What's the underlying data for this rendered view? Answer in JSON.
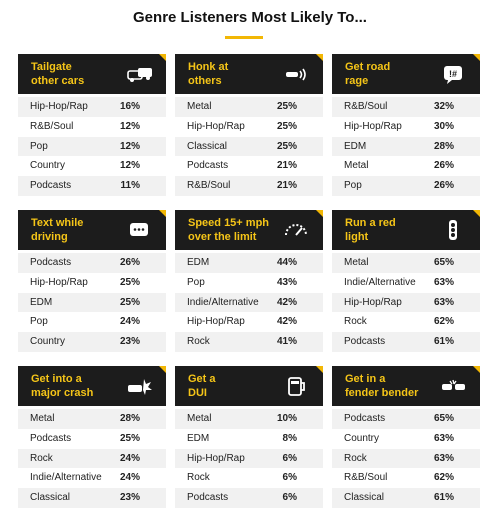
{
  "title": "Genre Listeners Most Likely To...",
  "panels": [
    {
      "title_lines": [
        "Tailgate",
        "other cars"
      ],
      "rows": [
        [
          "Hip-Hop/Rap",
          "16%"
        ],
        [
          "R&B/Soul",
          "12%"
        ],
        [
          "Pop",
          "12%"
        ],
        [
          "Country",
          "12%"
        ],
        [
          "Podcasts",
          "11%"
        ]
      ]
    },
    {
      "title_lines": [
        "Honk at",
        "others"
      ],
      "rows": [
        [
          "Metal",
          "25%"
        ],
        [
          "Hip-Hop/Rap",
          "25%"
        ],
        [
          "Classical",
          "25%"
        ],
        [
          "Podcasts",
          "21%"
        ],
        [
          "R&B/Soul",
          "21%"
        ]
      ]
    },
    {
      "title_lines": [
        "Get road",
        "rage"
      ],
      "rows": [
        [
          "R&B/Soul",
          "32%"
        ],
        [
          "Hip-Hop/Rap",
          "30%"
        ],
        [
          "EDM",
          "28%"
        ],
        [
          "Metal",
          "26%"
        ],
        [
          "Pop",
          "26%"
        ]
      ]
    },
    {
      "title_lines": [
        "Text while",
        "driving"
      ],
      "rows": [
        [
          "Podcasts",
          "26%"
        ],
        [
          "Hip-Hop/Rap",
          "25%"
        ],
        [
          "EDM",
          "25%"
        ],
        [
          "Pop",
          "24%"
        ],
        [
          "Country",
          "23%"
        ]
      ]
    },
    {
      "title_lines": [
        "Speed 15+ mph",
        "over the limit"
      ],
      "rows": [
        [
          "EDM",
          "44%"
        ],
        [
          "Pop",
          "43%"
        ],
        [
          "Indie/Alternative",
          "42%"
        ],
        [
          "Hip-Hop/Rap",
          "42%"
        ],
        [
          "Rock",
          "41%"
        ]
      ]
    },
    {
      "title_lines": [
        "Run a red",
        "light"
      ],
      "rows": [
        [
          "Metal",
          "65%"
        ],
        [
          "Indie/Alternative",
          "63%"
        ],
        [
          "Hip-Hop/Rap",
          "63%"
        ],
        [
          "Rock",
          "62%"
        ],
        [
          "Podcasts",
          "61%"
        ]
      ]
    },
    {
      "title_lines": [
        "Get into a",
        "major crash"
      ],
      "rows": [
        [
          "Metal",
          "28%"
        ],
        [
          "Podcasts",
          "25%"
        ],
        [
          "Rock",
          "24%"
        ],
        [
          "Indie/Alternative",
          "24%"
        ],
        [
          "Classical",
          "23%"
        ]
      ]
    },
    {
      "title_lines": [
        "Get a",
        "DUI"
      ],
      "rows": [
        [
          "Metal",
          "10%"
        ],
        [
          "EDM",
          "8%"
        ],
        [
          "Hip-Hop/Rap",
          "6%"
        ],
        [
          "Rock",
          "6%"
        ],
        [
          "Podcasts",
          "6%"
        ]
      ]
    },
    {
      "title_lines": [
        "Get in a",
        "fender bender"
      ],
      "rows": [
        [
          "Podcasts",
          "65%"
        ],
        [
          "Country",
          "63%"
        ],
        [
          "Rock",
          "63%"
        ],
        [
          "R&B/Soul",
          "62%"
        ],
        [
          "Classical",
          "61%"
        ]
      ]
    }
  ]
}
